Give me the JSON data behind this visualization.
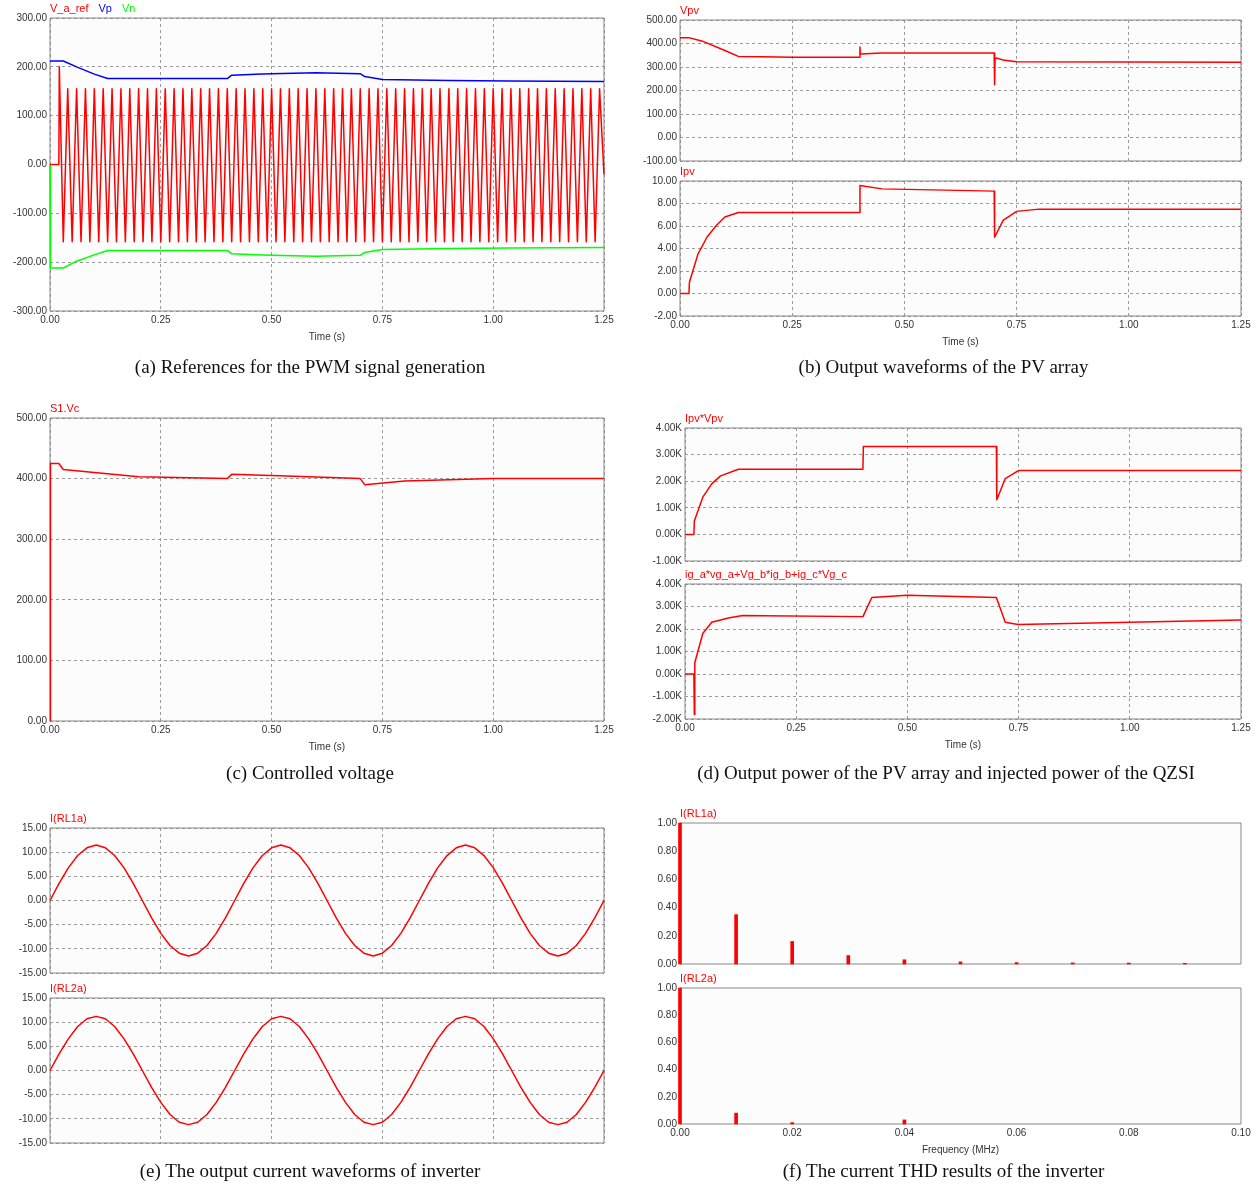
{
  "chart_data": [
    {
      "type": "line",
      "xlabel": "Time (s)",
      "legend": "top left",
      "grid": true,
      "xlim": [
        0,
        1.25
      ],
      "ylim": [
        -300,
        300
      ],
      "xticks": [
        {
          "value": 0,
          "label": "0.00"
        },
        {
          "value": 0.25,
          "label": "0.25"
        },
        {
          "value": 0.5,
          "label": "0.50"
        },
        {
          "value": 0.75,
          "label": "0.75"
        },
        {
          "value": 1,
          "label": "1.00"
        },
        {
          "value": 1.25,
          "label": "1.25"
        }
      ],
      "yticks": [
        {
          "value": -300,
          "label": "-300.00"
        },
        {
          "value": -200,
          "label": "-200.00"
        },
        {
          "value": -100,
          "label": "-100.00"
        },
        {
          "value": 0,
          "label": "0.00"
        },
        {
          "value": 100,
          "label": "100.00"
        },
        {
          "value": 200,
          "label": "200.00"
        },
        {
          "value": 300,
          "label": "300.00"
        }
      ],
      "annotations": [
        "(a) References for the PWM signal generation"
      ],
      "series": [
        {
          "name": "V_a_ref",
          "color": "#ff0000",
          "x": [
            0,
            0.02,
            0.021,
            0.03,
            0.04,
            0.05,
            0.06,
            0.07,
            0.08,
            0.09,
            0.1,
            0.11,
            0.12,
            0.13,
            0.14,
            0.15,
            0.16,
            0.17,
            0.18,
            0.19,
            0.2,
            0.21,
            0.22,
            0.23,
            0.24,
            0.25,
            0.26,
            0.27,
            0.28,
            0.29,
            0.3,
            0.31,
            0.32,
            0.33,
            0.34,
            0.35,
            0.36,
            0.37,
            0.38,
            0.39,
            0.4,
            0.41,
            0.42,
            0.43,
            0.44,
            0.45,
            0.46,
            0.47,
            0.48,
            0.49,
            0.5,
            0.51,
            0.52,
            0.53,
            0.54,
            0.55,
            0.56,
            0.57,
            0.58,
            0.59,
            0.6,
            0.61,
            0.62,
            0.63,
            0.64,
            0.65,
            0.66,
            0.67,
            0.68,
            0.69,
            0.7,
            0.71,
            0.72,
            0.73,
            0.74,
            0.75,
            0.76,
            0.77,
            0.78,
            0.79,
            0.8,
            0.81,
            0.82,
            0.83,
            0.84,
            0.85,
            0.86,
            0.87,
            0.88,
            0.89,
            0.9,
            0.91,
            0.92,
            0.93,
            0.94,
            0.95,
            0.96,
            0.97,
            0.98,
            0.99,
            1,
            1.01,
            1.02,
            1.03,
            1.04,
            1.05,
            1.06,
            1.07,
            1.08,
            1.09,
            1.1,
            1.11,
            1.12,
            1.13,
            1.14,
            1.15,
            1.16,
            1.17,
            1.18,
            1.19,
            1.2,
            1.21,
            1.22,
            1.23,
            1.24,
            1.25
          ],
          "values": [
            0,
            0,
            200,
            -158,
            155,
            -158,
            155,
            -158,
            155,
            -158,
            155,
            -158,
            155,
            -158,
            155,
            -158,
            155,
            -158,
            155,
            -158,
            155,
            -158,
            155,
            -158,
            155,
            -158,
            155,
            -158,
            155,
            -158,
            155,
            -158,
            155,
            -158,
            155,
            -158,
            155,
            -158,
            155,
            -158,
            155,
            -158,
            155,
            -158,
            155,
            -158,
            155,
            -158,
            155,
            -158,
            155,
            -158,
            155,
            -158,
            155,
            -158,
            155,
            -158,
            155,
            -158,
            155,
            -158,
            155,
            -158,
            155,
            -158,
            155,
            -158,
            155,
            -158,
            155,
            -158,
            155,
            -158,
            155,
            -158,
            155,
            -158,
            155,
            -158,
            155,
            -158,
            155,
            -158,
            155,
            -158,
            155,
            -158,
            155,
            -158,
            155,
            -158,
            155,
            -158,
            155,
            -158,
            155,
            -158,
            155,
            -158,
            155,
            -158,
            155,
            -158,
            155,
            -158,
            155,
            -158,
            155,
            -158,
            155,
            -158,
            155,
            -158,
            155,
            -158,
            155,
            -158,
            155,
            -158,
            155,
            -158,
            155,
            -158,
            155,
            -20
          ]
        },
        {
          "name": "Vp",
          "color": "#0000ff",
          "x": [
            0,
            0.03,
            0.06,
            0.1,
            0.13,
            0.25,
            0.4,
            0.41,
            0.5,
            0.6,
            0.7,
            0.71,
            0.75,
            0.9,
            1.25
          ],
          "values": [
            212,
            212,
            200,
            185,
            176,
            176,
            176,
            183,
            186,
            188,
            186,
            180,
            174,
            172,
            170
          ]
        },
        {
          "name": "Vn",
          "color": "#00ff00",
          "x": [
            0,
            0.001,
            0.03,
            0.06,
            0.1,
            0.13,
            0.25,
            0.4,
            0.41,
            0.5,
            0.6,
            0.7,
            0.71,
            0.75,
            0.9,
            1.25
          ],
          "values": [
            0,
            -212,
            -212,
            -198,
            -185,
            -176,
            -176,
            -176,
            -183,
            -186,
            -188,
            -186,
            -180,
            -174,
            -172,
            -170
          ]
        }
      ]
    },
    {
      "type": "line",
      "legend": "top left",
      "grid": true,
      "tick_labels": "y",
      "xlim": [
        0,
        1.25
      ],
      "ylim": [
        -100,
        500
      ],
      "xticks": [
        {
          "value": 0,
          "label": null
        },
        {
          "value": 0.25,
          "label": null
        },
        {
          "value": 0.5,
          "label": null
        },
        {
          "value": 0.75,
          "label": null
        },
        {
          "value": 1,
          "label": null
        },
        {
          "value": 1.25,
          "label": null
        }
      ],
      "yticks": [
        {
          "value": -100,
          "label": "-100.00"
        },
        {
          "value": 0,
          "label": "0.00"
        },
        {
          "value": 100,
          "label": "100.00"
        },
        {
          "value": 200,
          "label": "200.00"
        },
        {
          "value": 300,
          "label": "300.00"
        },
        {
          "value": 400,
          "label": "400.00"
        },
        {
          "value": 500,
          "label": "500.00"
        }
      ],
      "series": [
        {
          "name": "Vpv",
          "color": "#ff0000",
          "x": [
            0,
            0.02,
            0.05,
            0.1,
            0.13,
            0.25,
            0.4,
            0.401,
            0.402,
            0.45,
            0.7,
            0.701,
            0.702,
            0.72,
            0.75,
            1.25
          ],
          "values": [
            425,
            425,
            410,
            370,
            345,
            342,
            342,
            385,
            355,
            360,
            360,
            225,
            340,
            330,
            322,
            320
          ]
        }
      ]
    },
    {
      "type": "line",
      "xlabel": "Time (s)",
      "legend": "top left",
      "grid": true,
      "xlim": [
        0,
        1.25
      ],
      "ylim": [
        -2,
        10
      ],
      "xticks": [
        {
          "value": 0,
          "label": "0.00"
        },
        {
          "value": 0.25,
          "label": "0.25"
        },
        {
          "value": 0.5,
          "label": "0.50"
        },
        {
          "value": 0.75,
          "label": "0.75"
        },
        {
          "value": 1,
          "label": "1.00"
        },
        {
          "value": 1.25,
          "label": "1.25"
        }
      ],
      "yticks": [
        {
          "value": -2,
          "label": "-2.00"
        },
        {
          "value": 0,
          "label": "0.00"
        },
        {
          "value": 2,
          "label": "2.00"
        },
        {
          "value": 4,
          "label": "4.00"
        },
        {
          "value": 6,
          "label": "6.00"
        },
        {
          "value": 8,
          "label": "8.00"
        },
        {
          "value": 10,
          "label": "10.00"
        }
      ],
      "annotations": [
        "(b) Output waveforms of the PV array"
      ],
      "series": [
        {
          "name": "Ipv",
          "color": "#ff0000",
          "x": [
            0,
            0.02,
            0.021,
            0.04,
            0.06,
            0.08,
            0.1,
            0.13,
            0.4,
            0.401,
            0.45,
            0.7,
            0.701,
            0.72,
            0.75,
            0.8,
            1.25
          ],
          "values": [
            0,
            0,
            1,
            3.5,
            5,
            6,
            6.8,
            7.2,
            7.2,
            9.6,
            9.3,
            9.1,
            5,
            6.5,
            7.3,
            7.5,
            7.5
          ]
        }
      ]
    },
    {
      "type": "line",
      "xlabel": "Time (s)",
      "legend": "top left",
      "grid": true,
      "xlim": [
        0,
        1.25
      ],
      "ylim": [
        0,
        500
      ],
      "xticks": [
        {
          "value": 0,
          "label": "0.00"
        },
        {
          "value": 0.25,
          "label": "0.25"
        },
        {
          "value": 0.5,
          "label": "0.50"
        },
        {
          "value": 0.75,
          "label": "0.75"
        },
        {
          "value": 1,
          "label": "1.00"
        },
        {
          "value": 1.25,
          "label": "1.25"
        }
      ],
      "yticks": [
        {
          "value": 0,
          "label": "0.00"
        },
        {
          "value": 100,
          "label": "100.00"
        },
        {
          "value": 200,
          "label": "200.00"
        },
        {
          "value": 300,
          "label": "300.00"
        },
        {
          "value": 400,
          "label": "400.00"
        },
        {
          "value": 500,
          "label": "500.00"
        }
      ],
      "annotations": [
        "(c) Controlled voltage"
      ],
      "series": [
        {
          "name": "S1.Vc",
          "color": "#ff0000",
          "x": [
            0,
            0.001,
            0.02,
            0.03,
            0.1,
            0.2,
            0.4,
            0.41,
            0.5,
            0.7,
            0.71,
            0.8,
            1,
            1.25
          ],
          "values": [
            0,
            425,
            425,
            415,
            410,
            403,
            400,
            407,
            405,
            400,
            390,
            396,
            400,
            400
          ]
        }
      ]
    },
    {
      "type": "line",
      "legend": "top left",
      "grid": true,
      "tick_labels": "y",
      "xlim": [
        0,
        1.25
      ],
      "ylim": [
        -1000,
        4000
      ],
      "xticks": [
        {
          "value": 0,
          "label": null
        },
        {
          "value": 0.25,
          "label": null
        },
        {
          "value": 0.5,
          "label": null
        },
        {
          "value": 0.75,
          "label": null
        },
        {
          "value": 1,
          "label": null
        },
        {
          "value": 1.25,
          "label": null
        }
      ],
      "yticks": [
        {
          "value": -1000,
          "label": "-1.00K"
        },
        {
          "value": 0,
          "label": "0.00K"
        },
        {
          "value": 1000,
          "label": "1.00K"
        },
        {
          "value": 2000,
          "label": "2.00K"
        },
        {
          "value": 3000,
          "label": "3.00K"
        },
        {
          "value": 4000,
          "label": "4.00K"
        }
      ],
      "series": [
        {
          "name": "Ipv*Vpv",
          "color": "#ff0000",
          "x": [
            0,
            0.02,
            0.021,
            0.04,
            0.06,
            0.08,
            0.12,
            0.4,
            0.401,
            0.7,
            0.701,
            0.72,
            0.75,
            1.25
          ],
          "values": [
            0,
            0,
            500,
            1400,
            1900,
            2200,
            2450,
            2450,
            3300,
            3300,
            1300,
            2100,
            2400,
            2400
          ]
        }
      ]
    },
    {
      "type": "line",
      "xlabel": "Time (s)",
      "legend": "top left",
      "grid": true,
      "xlim": [
        0,
        1.25
      ],
      "ylim": [
        -2000,
        4000
      ],
      "xticks": [
        {
          "value": 0,
          "label": "0.00"
        },
        {
          "value": 0.25,
          "label": "0.25"
        },
        {
          "value": 0.5,
          "label": "0.50"
        },
        {
          "value": 0.75,
          "label": "0.75"
        },
        {
          "value": 1,
          "label": "1.00"
        },
        {
          "value": 1.25,
          "label": "1.25"
        }
      ],
      "yticks": [
        {
          "value": -2000,
          "label": "-2.00K"
        },
        {
          "value": -1000,
          "label": "-1.00K"
        },
        {
          "value": 0,
          "label": "0.00K"
        },
        {
          "value": 1000,
          "label": "1.00K"
        },
        {
          "value": 2000,
          "label": "2.00K"
        },
        {
          "value": 3000,
          "label": "3.00K"
        },
        {
          "value": 4000,
          "label": "4.00K"
        }
      ],
      "annotations": [
        "(d) Output power of the PV array and injected power of the QZSI"
      ],
      "series": [
        {
          "name": "ig_a*vg_a+Vg_b*ig_b+ig_c*Vg_c",
          "color": "#ff0000",
          "x": [
            0,
            0.02,
            0.021,
            0.022,
            0.04,
            0.06,
            0.1,
            0.13,
            0.4,
            0.42,
            0.5,
            0.7,
            0.72,
            0.75,
            1.25
          ],
          "values": [
            0,
            0,
            -1800,
            500,
            1800,
            2300,
            2500,
            2600,
            2550,
            3400,
            3500,
            3400,
            2300,
            2200,
            2400
          ]
        }
      ]
    },
    {
      "type": "line",
      "legend": "top left",
      "grid": true,
      "tick_labels": "y",
      "ylim": [
        -15,
        15
      ],
      "yticks": [
        {
          "value": -15,
          "label": "-15.00"
        },
        {
          "value": -10,
          "label": "-10.00"
        },
        {
          "value": -5,
          "label": "-5.00"
        },
        {
          "value": 0,
          "label": "0.00"
        },
        {
          "value": 5,
          "label": "5.00"
        },
        {
          "value": 10,
          "label": "10.00"
        },
        {
          "value": 15,
          "label": "15.00"
        }
      ],
      "categories": [
        null,
        null,
        null,
        null,
        null,
        null,
        null,
        null,
        null,
        null,
        null,
        null,
        null,
        null,
        null,
        null,
        null,
        null,
        null,
        null,
        null,
        null,
        null,
        null,
        null,
        null,
        null,
        null,
        null,
        null,
        null,
        null,
        null,
        null,
        null,
        null,
        null,
        null,
        null,
        null,
        null,
        null,
        null,
        null,
        null,
        null,
        null,
        null,
        null,
        null,
        null,
        null,
        null,
        null,
        null,
        null,
        null,
        null,
        null,
        null,
        null
      ],
      "series": [
        {
          "name": "I(RL1a)",
          "color": "#ff0000",
          "values": [
            0,
            3.6,
            6.8,
            9.3,
            10.9,
            11.5,
            10.9,
            9.3,
            6.8,
            3.6,
            0,
            -3.6,
            -6.8,
            -9.3,
            -10.9,
            -11.5,
            -10.9,
            -9.3,
            -6.8,
            -3.6,
            0,
            3.6,
            6.8,
            9.3,
            10.9,
            11.5,
            10.9,
            9.3,
            6.8,
            3.6,
            0,
            -3.6,
            -6.8,
            -9.3,
            -10.9,
            -11.5,
            -10.9,
            -9.3,
            -6.8,
            -3.6,
            0,
            3.6,
            6.8,
            9.3,
            10.9,
            11.5,
            10.9,
            9.3,
            6.8,
            3.6,
            0,
            -3.6,
            -6.8,
            -9.3,
            -10.9,
            -11.5,
            -10.9,
            -9.3,
            -6.8,
            -3.6,
            0
          ]
        }
      ]
    },
    {
      "type": "line",
      "legend": "top left",
      "grid": true,
      "tick_labels": "y",
      "ylim": [
        -15,
        15
      ],
      "yticks": [
        {
          "value": -15,
          "label": "-15.00"
        },
        {
          "value": -10,
          "label": "-10.00"
        },
        {
          "value": -5,
          "label": "-5.00"
        },
        {
          "value": 0,
          "label": "0.00"
        },
        {
          "value": 5,
          "label": "5.00"
        },
        {
          "value": 10,
          "label": "10.00"
        },
        {
          "value": 15,
          "label": "15.00"
        }
      ],
      "categories": [
        null,
        null,
        null,
        null,
        null,
        null,
        null,
        null,
        null,
        null,
        null,
        null,
        null,
        null,
        null,
        null,
        null,
        null,
        null,
        null,
        null,
        null,
        null,
        null,
        null,
        null,
        null,
        null,
        null,
        null,
        null,
        null,
        null,
        null,
        null,
        null,
        null,
        null,
        null,
        null,
        null,
        null,
        null,
        null,
        null,
        null,
        null,
        null,
        null,
        null,
        null,
        null,
        null,
        null,
        null,
        null,
        null,
        null,
        null,
        null,
        null
      ],
      "annotations": [
        "(e) The output current waveforms of inverter"
      ],
      "series": [
        {
          "name": "I(RL2a)",
          "color": "#ff0000",
          "values": [
            0,
            3.5,
            6.6,
            9.1,
            10.7,
            11.2,
            10.7,
            9.1,
            6.6,
            3.5,
            0,
            -3.5,
            -6.6,
            -9.1,
            -10.7,
            -11.2,
            -10.7,
            -9.1,
            -6.6,
            -3.5,
            0,
            3.5,
            6.6,
            9.1,
            10.7,
            11.2,
            10.7,
            9.1,
            6.6,
            3.5,
            0,
            -3.5,
            -6.6,
            -9.1,
            -10.7,
            -11.2,
            -10.7,
            -9.1,
            -6.6,
            -3.5,
            0,
            3.5,
            6.6,
            9.1,
            10.7,
            11.2,
            10.7,
            9.1,
            6.6,
            3.5,
            0,
            -3.5,
            -6.6,
            -9.1,
            -10.7,
            -11.2,
            -10.7,
            -9.1,
            -6.6,
            -3.5,
            0
          ]
        }
      ]
    },
    {
      "type": "bar",
      "legend": "top left",
      "tick_labels": "y",
      "xlim": [
        0,
        0.1
      ],
      "ylim": [
        0,
        1
      ],
      "xticks": [
        {
          "value": 0,
          "label": null
        },
        {
          "value": 0.02,
          "label": null
        },
        {
          "value": 0.04,
          "label": null
        },
        {
          "value": 0.06,
          "label": null
        },
        {
          "value": 0.08,
          "label": null
        },
        {
          "value": 0.1,
          "label": null
        }
      ],
      "yticks": [
        {
          "value": 0,
          "label": "0.00"
        },
        {
          "value": 0.2,
          "label": "0.20"
        },
        {
          "value": 0.4,
          "label": "0.40"
        },
        {
          "value": 0.6,
          "label": "0.60"
        },
        {
          "value": 0.8,
          "label": "0.80"
        },
        {
          "value": 1,
          "label": "1.00"
        }
      ],
      "series": [
        {
          "name": "I(RL1a)",
          "color": "#ff0000",
          "x": [
            0,
            0.01,
            0.02,
            0.03,
            0.04,
            0.05,
            0.06,
            0.07,
            0.08,
            0.09
          ],
          "values": [
            1,
            0.35,
            0.16,
            0.06,
            0.03,
            0.015,
            0.01,
            0.008,
            0.007,
            0.005
          ]
        }
      ]
    },
    {
      "type": "bar",
      "xlabel": "Frequency (MHz)",
      "legend": "top left",
      "xlim": [
        0,
        0.1
      ],
      "ylim": [
        0,
        1
      ],
      "xticks": [
        {
          "value": 0,
          "label": "0.00"
        },
        {
          "value": 0.02,
          "label": "0.02"
        },
        {
          "value": 0.04,
          "label": "0.04"
        },
        {
          "value": 0.06,
          "label": "0.06"
        },
        {
          "value": 0.08,
          "label": "0.08"
        },
        {
          "value": 0.1,
          "label": "0.10"
        }
      ],
      "yticks": [
        {
          "value": 0,
          "label": "0.00"
        },
        {
          "value": 0.2,
          "label": "0.20"
        },
        {
          "value": 0.4,
          "label": "0.40"
        },
        {
          "value": 0.6,
          "label": "0.60"
        },
        {
          "value": 0.8,
          "label": "0.80"
        },
        {
          "value": 1,
          "label": "1.00"
        }
      ],
      "annotations": [
        "(f) The current THD results of the inverter"
      ],
      "series": [
        {
          "name": "I(RL2a)",
          "color": "#ff0000",
          "x": [
            0,
            0.01,
            0.02,
            0.04
          ],
          "values": [
            1,
            0.08,
            0.01,
            0.03
          ]
        }
      ]
    }
  ]
}
